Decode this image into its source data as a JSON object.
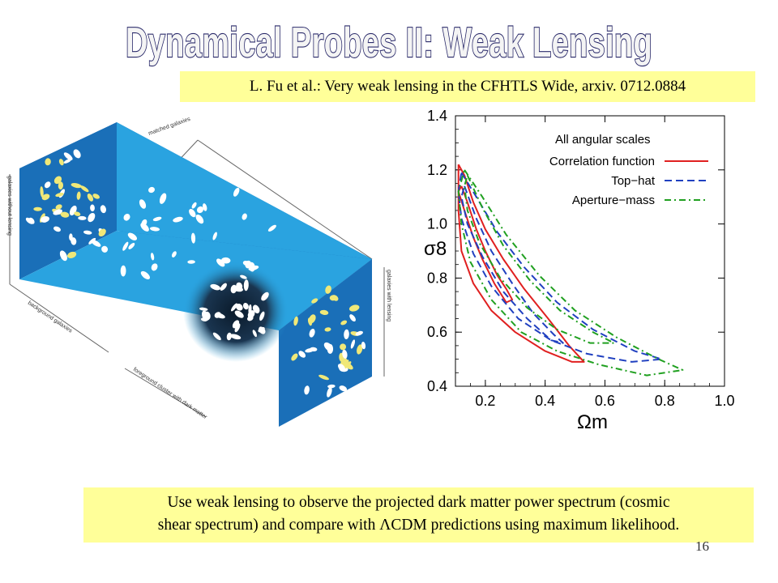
{
  "slide": {
    "title": "Dynamical Probes II: Weak Lensing",
    "citation": "L. Fu et al.: Very weak lensing in the CFHTLS Wide, arxiv. 0712.0884",
    "caption_line1": "Use weak lensing to observe the projected dark matter power spectrum (cosmic",
    "caption_line2": "shear spectrum) and compare with ΛCDM predictions using maximum likelihood.",
    "page_number": "16"
  },
  "illustration": {
    "label_matched": "matched galaxies",
    "label_back_wall": "galaxies without lensing",
    "label_front_wall": "galaxies with lensing",
    "label_background": "background galaxies",
    "label_foreground": "foreground cluster with dark matter",
    "colors": {
      "panel_dark": "#1a6fb8",
      "panel_light": "#2aa3e0",
      "galaxy_yellow": "#f0e878"
    }
  },
  "chart_data": {
    "type": "line",
    "title": "",
    "xlabel": "Ωm",
    "ylabel": "σ8",
    "xlim": [
      0.1,
      1.0
    ],
    "ylim": [
      0.4,
      1.4
    ],
    "xticks": [
      "0.2",
      "0.4",
      "0.6",
      "0.8",
      "1.0"
    ],
    "yticks": [
      "1.4",
      "1.2",
      "1.0",
      "0.8",
      "0.6",
      "0.4"
    ],
    "legend_title": "All angular scales",
    "legend_placement": "top-right",
    "series": [
      {
        "name": "Correlation function",
        "color": "#e02020",
        "dash": "solid",
        "contours": [
          [
            [
              0.12,
              1.14
            ],
            [
              0.14,
              1.08
            ],
            [
              0.17,
              0.98
            ],
            [
              0.2,
              0.9
            ],
            [
              0.24,
              0.81
            ],
            [
              0.27,
              0.76
            ],
            [
              0.29,
              0.72
            ],
            [
              0.27,
              0.71
            ],
            [
              0.23,
              0.78
            ],
            [
              0.19,
              0.87
            ],
            [
              0.16,
              0.95
            ],
            [
              0.13,
              1.05
            ],
            [
              0.11,
              1.12
            ],
            [
              0.12,
              1.14
            ]
          ],
          [
            [
              0.11,
              1.22
            ],
            [
              0.13,
              1.18
            ],
            [
              0.16,
              1.08
            ],
            [
              0.2,
              0.98
            ],
            [
              0.26,
              0.87
            ],
            [
              0.33,
              0.76
            ],
            [
              0.41,
              0.65
            ],
            [
              0.48,
              0.55
            ],
            [
              0.53,
              0.49
            ],
            [
              0.49,
              0.49
            ],
            [
              0.4,
              0.53
            ],
            [
              0.3,
              0.6
            ],
            [
              0.22,
              0.68
            ],
            [
              0.16,
              0.78
            ],
            [
              0.12,
              0.9
            ],
            [
              0.11,
              1.05
            ],
            [
              0.11,
              1.22
            ]
          ]
        ]
      },
      {
        "name": "Top−hat",
        "color": "#2040c0",
        "dash": "dashed",
        "contours": [
          [
            [
              0.13,
              1.14
            ],
            [
              0.17,
              1.02
            ],
            [
              0.22,
              0.9
            ],
            [
              0.29,
              0.78
            ],
            [
              0.36,
              0.67
            ],
            [
              0.43,
              0.59
            ],
            [
              0.46,
              0.56
            ],
            [
              0.42,
              0.57
            ],
            [
              0.34,
              0.65
            ],
            [
              0.26,
              0.75
            ],
            [
              0.19,
              0.88
            ],
            [
              0.14,
              1.0
            ],
            [
              0.12,
              1.1
            ],
            [
              0.13,
              1.14
            ]
          ],
          [
            [
              0.12,
              1.19
            ],
            [
              0.17,
              1.1
            ],
            [
              0.24,
              0.97
            ],
            [
              0.33,
              0.84
            ],
            [
              0.44,
              0.71
            ],
            [
              0.56,
              0.61
            ],
            [
              0.7,
              0.53
            ],
            [
              0.79,
              0.5
            ],
            [
              0.69,
              0.49
            ],
            [
              0.54,
              0.52
            ],
            [
              0.42,
              0.57
            ],
            [
              0.31,
              0.65
            ],
            [
              0.22,
              0.77
            ],
            [
              0.16,
              0.89
            ],
            [
              0.12,
              1.02
            ],
            [
              0.11,
              1.12
            ],
            [
              0.12,
              1.19
            ]
          ]
        ]
      },
      {
        "name": "Aperture−mass",
        "color": "#20a020",
        "dash": "dashdot",
        "contours": [
          [
            [
              0.14,
              1.18
            ],
            [
              0.19,
              1.06
            ],
            [
              0.26,
              0.92
            ],
            [
              0.35,
              0.79
            ],
            [
              0.45,
              0.68
            ],
            [
              0.56,
              0.6
            ],
            [
              0.63,
              0.56
            ],
            [
              0.55,
              0.56
            ],
            [
              0.44,
              0.61
            ],
            [
              0.34,
              0.69
            ],
            [
              0.25,
              0.8
            ],
            [
              0.18,
              0.93
            ],
            [
              0.14,
              1.05
            ],
            [
              0.13,
              1.14
            ],
            [
              0.14,
              1.18
            ]
          ],
          [
            [
              0.13,
              1.2
            ],
            [
              0.19,
              1.1
            ],
            [
              0.27,
              0.96
            ],
            [
              0.38,
              0.81
            ],
            [
              0.5,
              0.68
            ],
            [
              0.64,
              0.58
            ],
            [
              0.78,
              0.5
            ],
            [
              0.86,
              0.46
            ],
            [
              0.74,
              0.44
            ],
            [
              0.58,
              0.48
            ],
            [
              0.44,
              0.53
            ],
            [
              0.32,
              0.6
            ],
            [
              0.22,
              0.72
            ],
            [
              0.15,
              0.86
            ],
            [
              0.12,
              1.0
            ],
            [
              0.11,
              1.12
            ],
            [
              0.13,
              1.2
            ]
          ]
        ]
      }
    ]
  }
}
